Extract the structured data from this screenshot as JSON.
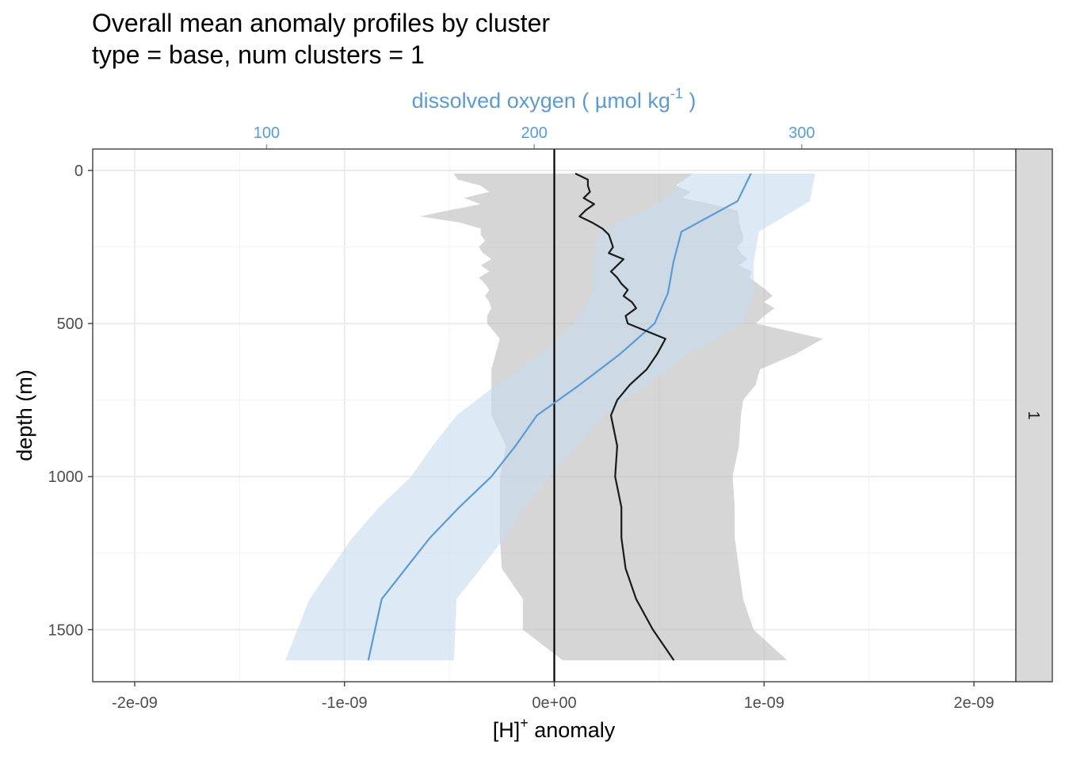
{
  "chart_data": {
    "type": "line",
    "title": "Overall mean anomaly profiles by cluster",
    "subtitle": "type = base, num clusters = 1",
    "xlabel_base": "[H]",
    "xlabel_sup": "+",
    "xlabel_rest": " anomaly",
    "x2label_base": "dissolved oxygen ( µmol kg",
    "x2label_sup": "-1",
    "x2label_rest": " )",
    "ylabel": "depth (m)",
    "facet_label": "1",
    "xlim": [
      -2.2e-09,
      2.2e-09
    ],
    "x2lim": [
      35,
      380
    ],
    "ylim": [
      1670,
      -70
    ],
    "y_reversed": true,
    "grid": true,
    "x_ticks": [
      {
        "value": -2e-09,
        "label": "-2e-09"
      },
      {
        "value": -1e-09,
        "label": "-1e-09"
      },
      {
        "value": 0,
        "label": "0e+00"
      },
      {
        "value": 1e-09,
        "label": "1e-09"
      },
      {
        "value": 2e-09,
        "label": "2e-09"
      }
    ],
    "x2_ticks": [
      {
        "value": 100,
        "label": "100"
      },
      {
        "value": 200,
        "label": "200"
      },
      {
        "value": 300,
        "label": "300"
      }
    ],
    "y_ticks": [
      {
        "value": 0,
        "label": "0"
      },
      {
        "value": 500,
        "label": "500"
      },
      {
        "value": 1000,
        "label": "1000"
      },
      {
        "value": 1500,
        "label": "1500"
      }
    ],
    "zero_line": 0,
    "colors": {
      "h_line": "#1a1a1a",
      "h_band": "#bdbdbd",
      "oxygen_line": "#5b9bd5",
      "oxygen_band": "#c6dbef",
      "strip_fill": "#d9d9d9",
      "top_axis": "#5b9bd5"
    },
    "series": [
      {
        "axis": "bottom",
        "depth": [
          10,
          30,
          50,
          70,
          90,
          110,
          130,
          150,
          170,
          190,
          210,
          230,
          250,
          270,
          290,
          310,
          330,
          350,
          370,
          390,
          410,
          430,
          450,
          475,
          500,
          550,
          600,
          650,
          700,
          750,
          800,
          900,
          1000,
          1100,
          1200,
          1300,
          1400,
          1500,
          1600
        ],
        "mean": [
          1e-10,
          1.6e-10,
          1.6e-10,
          1.7e-10,
          1.4e-10,
          1.9e-10,
          1.5e-10,
          1.2e-10,
          1.8e-10,
          2.3e-10,
          2.6e-10,
          2.7e-10,
          2.8e-10,
          2.6e-10,
          3.3e-10,
          3e-10,
          2.7e-10,
          3e-10,
          3.2e-10,
          3.5e-10,
          3.3e-10,
          3.7e-10,
          3.9e-10,
          3.4e-10,
          3.5e-10,
          5.3e-10,
          4.9e-10,
          4.4e-10,
          3.6e-10,
          3e-10,
          2.7e-10,
          3e-10,
          2.9e-10,
          3.2e-10,
          3.2e-10,
          3.4e-10,
          3.9e-10,
          4.7e-10,
          5.7e-10
        ],
        "lower": [
          -4.8e-10,
          -4.6e-10,
          -3.5e-10,
          -3.1e-10,
          -4.3e-10,
          -3.5e-10,
          -5e-10,
          -6.4e-10,
          -4.5e-10,
          -3.5e-10,
          -3.5e-10,
          -3.3e-10,
          -3.6e-10,
          -3.4e-10,
          -3e-10,
          -3.5e-10,
          -3.1e-10,
          -3.6e-10,
          -3.3e-10,
          -3.1e-10,
          -3.3e-10,
          -3.1e-10,
          -3e-10,
          -3.2e-10,
          -3.2e-10,
          -2.6e-10,
          -2.8e-10,
          -3e-10,
          -3e-10,
          -3e-10,
          -3e-10,
          -2.3e-10,
          -2.6e-10,
          -2.6e-10,
          -2.6e-10,
          -2.5e-10,
          -1.5e-10,
          -1.5e-10,
          4e-11
        ],
        "upper": [
          6.6e-10,
          6.2e-10,
          5.8e-10,
          6.5e-10,
          6.1e-10,
          7.5e-10,
          8.7e-10,
          8.8e-10,
          8.8e-10,
          8.9e-10,
          9e-10,
          9e-10,
          8.7e-10,
          8.9e-10,
          9.2e-10,
          8.8e-10,
          9.4e-10,
          9.3e-10,
          9.7e-10,
          1.01e-09,
          1.04e-09,
          1e-09,
          1.05e-09,
          1e-09,
          9.6e-10,
          1.28e-09,
          1.15e-09,
          9.8e-10,
          9.6e-10,
          9e-10,
          8.9e-10,
          8.8e-10,
          8.5e-10,
          8.6e-10,
          8.6e-10,
          8.8e-10,
          9e-10,
          9.5e-10,
          1.11e-09
        ]
      },
      {
        "axis": "top",
        "depth": [
          10,
          100,
          200,
          300,
          400,
          500,
          600,
          700,
          800,
          900,
          1000,
          1100,
          1200,
          1300,
          1400,
          1600
        ],
        "mean": [
          281,
          276,
          255,
          252,
          250,
          245,
          232,
          217,
          201,
          193,
          184,
          172,
          161,
          152,
          143,
          138
        ],
        "lower": [
          258,
          248,
          224,
          222,
          222,
          215,
          202,
          186,
          171,
          162,
          154,
          142,
          132,
          124,
          116,
          107
        ],
        "upper": [
          305,
          303,
          284,
          282,
          282,
          278,
          258,
          242,
          226,
          216,
          206,
          196,
          189,
          180,
          171,
          170
        ]
      }
    ]
  }
}
